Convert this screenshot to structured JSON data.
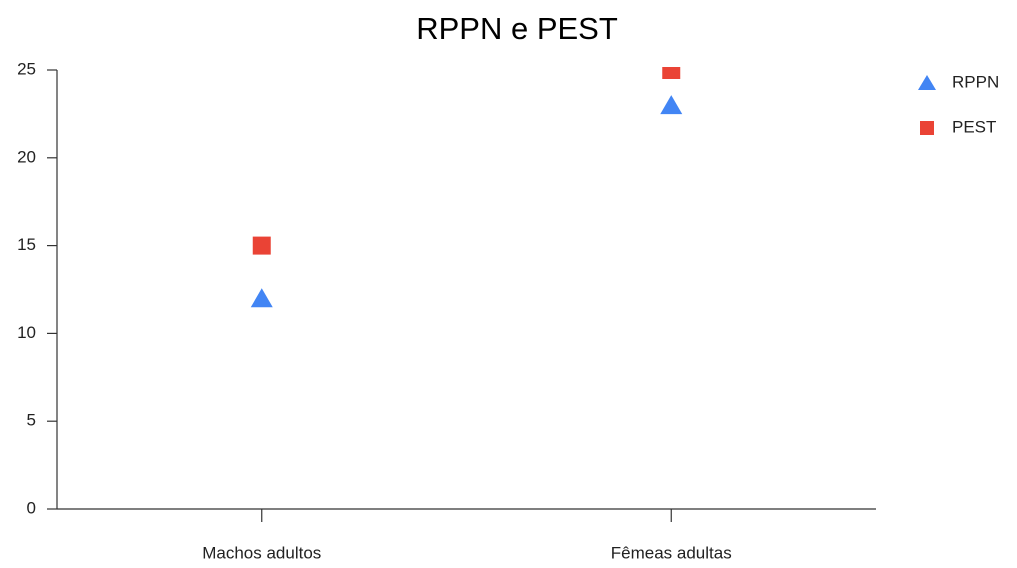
{
  "chart_data": {
    "type": "scatter",
    "title": "RPPN e PEST",
    "categories": [
      "Machos adultos",
      "Fêmeas adultas"
    ],
    "series": [
      {
        "name": "RPPN",
        "color": "#4285f4",
        "marker": "triangle",
        "values": [
          12,
          23
        ]
      },
      {
        "name": "PEST",
        "color": "#ea4335",
        "marker": "square",
        "values": [
          15,
          25
        ]
      }
    ],
    "ylim": [
      0,
      25
    ],
    "yticks": [
      0,
      5,
      10,
      15,
      20,
      25
    ],
    "grid": false,
    "legend": "right"
  }
}
